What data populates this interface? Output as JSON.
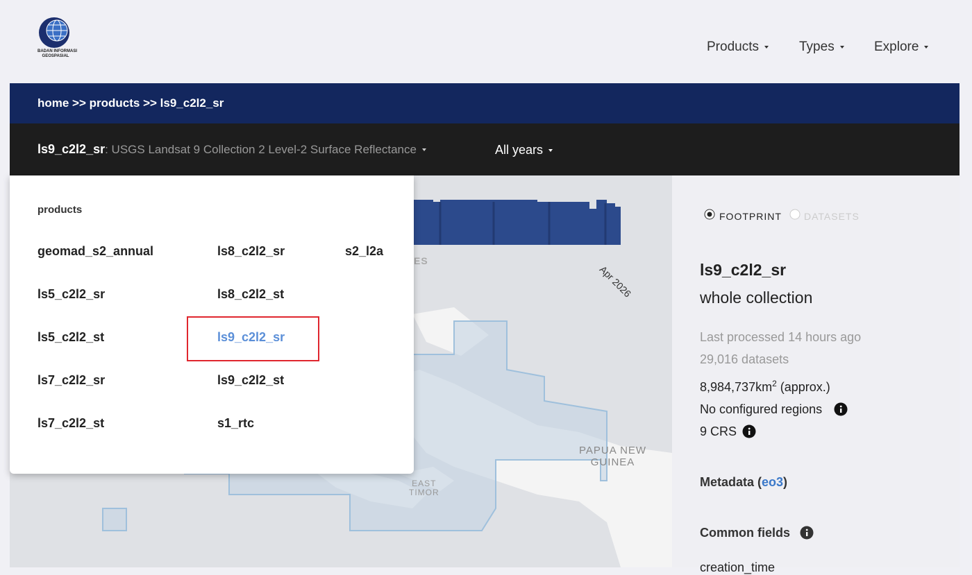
{
  "header": {
    "logo": {
      "line1": "BADAN INFORMASI",
      "line2": "GEOSPASIAL"
    },
    "nav": [
      "Products",
      "Types",
      "Explore"
    ]
  },
  "breadcrumb": "home >> products >> ls9_c2l2_sr",
  "product_bar": {
    "product": "ls9_c2l2_sr",
    "description": ": USGS Landsat 9 Collection 2 Level-2 Surface Reflectance",
    "period": "All years"
  },
  "dropdown": {
    "heading": "products",
    "columns": [
      [
        "geomad_s2_annual",
        "ls5_c2l2_sr",
        "ls5_c2l2_st",
        "ls7_c2l2_sr",
        "ls7_c2l2_st"
      ],
      [
        "ls8_c2l2_sr",
        "ls8_c2l2_st",
        "ls9_c2l2_sr",
        "ls9_c2l2_st",
        "s1_rtc"
      ],
      [
        "s2_l2a"
      ]
    ]
  },
  "map": {
    "labels": {
      "es": "ES",
      "date": "Apr 2026",
      "png1": "PAPUA NEW",
      "png2": "GUINEA",
      "tl1": "EAST",
      "tl2": "TIMOR"
    }
  },
  "panel": {
    "toggle": [
      "FOOTPRINT",
      "DATASETS"
    ],
    "title": "ls9_c2l2_sr",
    "subtitle": "whole collection",
    "last_processed": "Last processed 14 hours ago",
    "datasets": "29,016 datasets",
    "area": "8,984,737km",
    "area_sup": "2",
    "area_suffix": " (approx.)",
    "regions": "No configured regions",
    "crs": "9 CRS",
    "metadata": "Metadata (",
    "metadata_link": "eo3",
    "metadata_end": ")",
    "common_fields": "Common fields",
    "field": "creation_time"
  }
}
